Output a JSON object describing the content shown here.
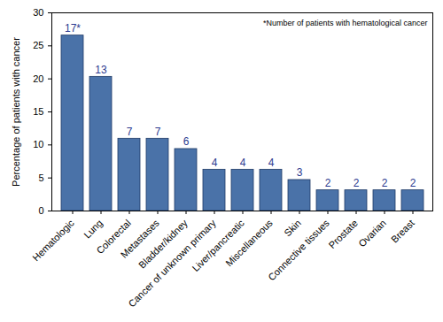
{
  "chart_data": {
    "type": "bar",
    "y_label": "Percentage of patients with cancer",
    "annotation": "*Number of patients with hematological cancer",
    "categories": [
      "Hematologic",
      "Lung",
      "Colorectal",
      "Metastases",
      "Bladder/kidney",
      "Cancer of unknown primary",
      "Liver/pancreatic",
      "Miscellaneous",
      "Skin",
      "Connective tissues",
      "Prostate",
      "Ovarian",
      "Breast"
    ],
    "values": [
      26.56,
      20.31,
      10.94,
      10.94,
      9.38,
      6.25,
      6.25,
      6.25,
      4.69,
      3.13,
      3.13,
      3.13,
      3.13
    ],
    "count_labels": [
      "17*",
      "13",
      "7",
      "7",
      "6",
      "4",
      "4",
      "4",
      "3",
      "2",
      "2",
      "2",
      "2"
    ],
    "color": "#4a72a8",
    "ylim": [
      0,
      30
    ],
    "yticks": [
      0,
      5,
      10,
      15,
      20,
      25,
      30
    ],
    "grid": false
  }
}
